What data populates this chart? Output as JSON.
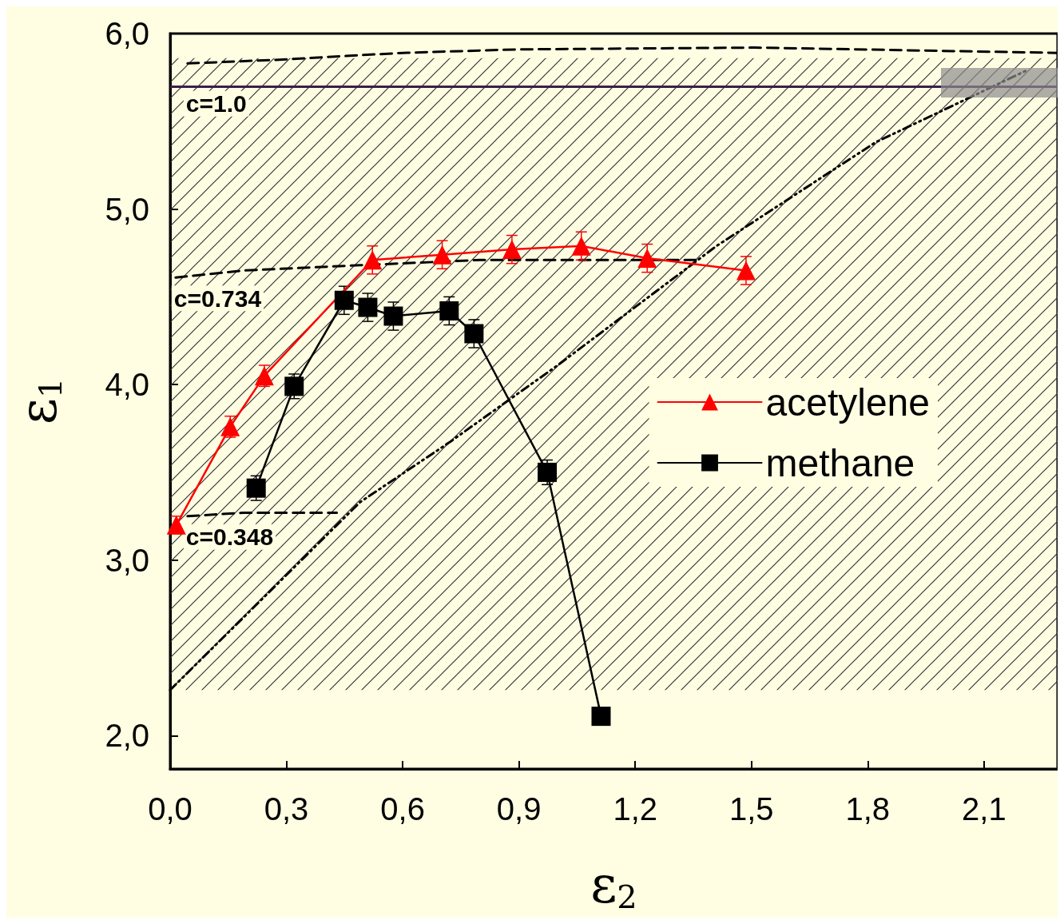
{
  "chart_data": {
    "type": "line",
    "xlabel": "ε$_{2}$",
    "ylabel": "ε$_{1}$",
    "xlim": [
      0,
      2.29
    ],
    "ylim": [
      1.81,
      6.0
    ],
    "xticks": [
      {
        "value": 0,
        "label": "0,0"
      },
      {
        "value": 0.3,
        "label": "0,3"
      },
      {
        "value": 0.6,
        "label": "0,6"
      },
      {
        "value": 0.9,
        "label": "0,9"
      },
      {
        "value": 1.2,
        "label": "1,2"
      },
      {
        "value": 1.5,
        "label": "1,5"
      },
      {
        "value": 1.8,
        "label": "1,8"
      },
      {
        "value": 2.1,
        "label": "2,1"
      }
    ],
    "yticks": [
      {
        "value": 2,
        "label": "2,0"
      },
      {
        "value": 3,
        "label": "3,0"
      },
      {
        "value": 4,
        "label": "4,0"
      },
      {
        "value": 5,
        "label": "5,0"
      },
      {
        "value": 6,
        "label": "6,0"
      }
    ],
    "legend": "right",
    "grid": false,
    "series": [
      {
        "name": "acetylene",
        "color": "#ff0000",
        "marker": "triangle",
        "line_style": "solid",
        "x": [
          0.016,
          0.155,
          0.243,
          0.522,
          0.702,
          0.882,
          1.061,
          1.231,
          1.486
        ],
        "values": [
          3.2,
          3.76,
          4.05,
          4.71,
          4.74,
          4.77,
          4.79,
          4.72,
          4.65
        ],
        "errors": [
          0.05,
          0.06,
          0.06,
          0.08,
          0.08,
          0.08,
          0.08,
          0.08,
          0.08
        ]
      },
      {
        "name": "methane",
        "color": "#000000",
        "marker": "square",
        "line_style": "solid",
        "x": [
          0.222,
          0.32,
          0.449,
          0.51,
          0.576,
          0.72,
          0.784,
          0.973,
          1.112
        ],
        "values": [
          3.41,
          3.99,
          4.48,
          4.44,
          4.39,
          4.42,
          4.29,
          3.5,
          2.11
        ],
        "errors": [
          0.07,
          0.07,
          0.08,
          0.08,
          0.08,
          0.08,
          0.08,
          0.07,
          null
        ]
      },
      {
        "name": "c=1.0",
        "color": "#000000",
        "marker": "none",
        "line_style": "dashed",
        "x": [
          0.045,
          0.27,
          0.6,
          0.9,
          1.51,
          2.29
        ],
        "values": [
          5.83,
          5.85,
          5.89,
          5.91,
          5.92,
          5.89
        ]
      },
      {
        "name": "c=0.734",
        "color": "#000000",
        "marker": "none",
        "line_style": "dashed",
        "x": [
          0.014,
          0.19,
          0.49,
          0.8,
          1.37
        ],
        "values": [
          4.61,
          4.65,
          4.68,
          4.71,
          4.71
        ]
      },
      {
        "name": "c=0.348",
        "color": "#000000",
        "marker": "none",
        "line_style": "dashed",
        "x": [
          0.045,
          0.19,
          0.43
        ],
        "values": [
          3.25,
          3.27,
          3.27
        ]
      },
      {
        "color": "#000000",
        "marker": "none",
        "line_style": "dotted",
        "x": [
          0,
          0.49,
          0.72,
          1.0,
          1.41,
          1.82,
          2.21
        ],
        "values": [
          2.26,
          3.33,
          3.67,
          4.11,
          4.79,
          5.38,
          5.79
        ]
      }
    ],
    "ref_lines": [
      {
        "axis": "y",
        "value": 5.7,
        "color": "#3c1e4a"
      }
    ],
    "bands": [
      {
        "axis": "y",
        "from": 2.26,
        "to": 5.86,
        "color": "#333333"
      }
    ]
  }
}
